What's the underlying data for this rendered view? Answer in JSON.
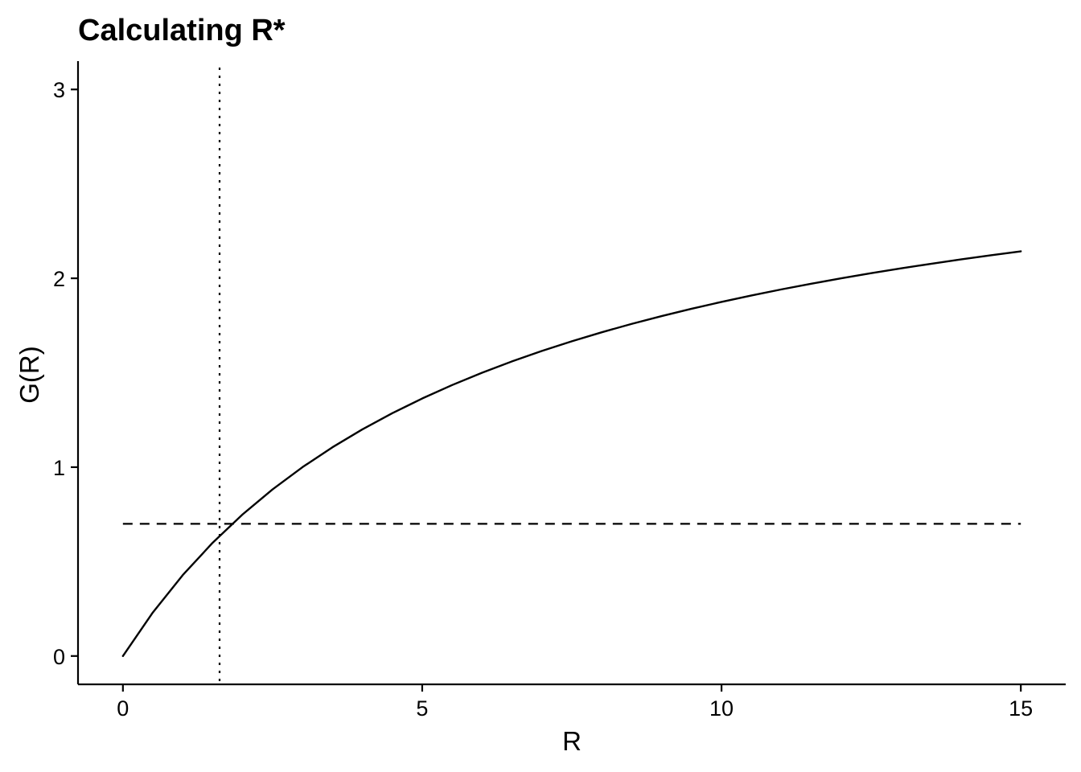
{
  "chart_data": {
    "type": "line",
    "title": "Calculating R*",
    "xlabel": "R",
    "ylabel": "G(R)",
    "xlim": [
      -0.75,
      15.75
    ],
    "ylim": [
      -0.15,
      3.15
    ],
    "xticks": [
      0,
      5,
      10,
      15
    ],
    "yticks": [
      0,
      1,
      2,
      3
    ],
    "grid": false,
    "legend": "none",
    "series": [
      {
        "style": "solid",
        "color": "#000000",
        "x": [
          0,
          0.5,
          1,
          1.5,
          2,
          2.5,
          3,
          3.5,
          4,
          4.5,
          5,
          5.5,
          6,
          6.5,
          7,
          7.5,
          8,
          8.5,
          9,
          9.5,
          10,
          10.5,
          11,
          11.5,
          12,
          12.5,
          13,
          13.5,
          14,
          14.5,
          15
        ],
        "y": [
          0,
          0.2308,
          0.4286,
          0.6,
          0.75,
          0.8824,
          1.0,
          1.1053,
          1.2,
          1.2857,
          1.3636,
          1.4348,
          1.5,
          1.56,
          1.6154,
          1.6667,
          1.7143,
          1.7586,
          1.8,
          1.8387,
          1.875,
          1.9091,
          1.9412,
          1.9714,
          2.0,
          2.027,
          2.0526,
          2.0769,
          2.1,
          2.122,
          2.1429
        ]
      }
    ],
    "reference_lines": [
      {
        "orientation": "horizontal",
        "style": "dashed",
        "y": 0.7,
        "x_from": 0,
        "x_to": 15
      },
      {
        "orientation": "vertical",
        "style": "dotted",
        "x": 1.615
      }
    ]
  }
}
